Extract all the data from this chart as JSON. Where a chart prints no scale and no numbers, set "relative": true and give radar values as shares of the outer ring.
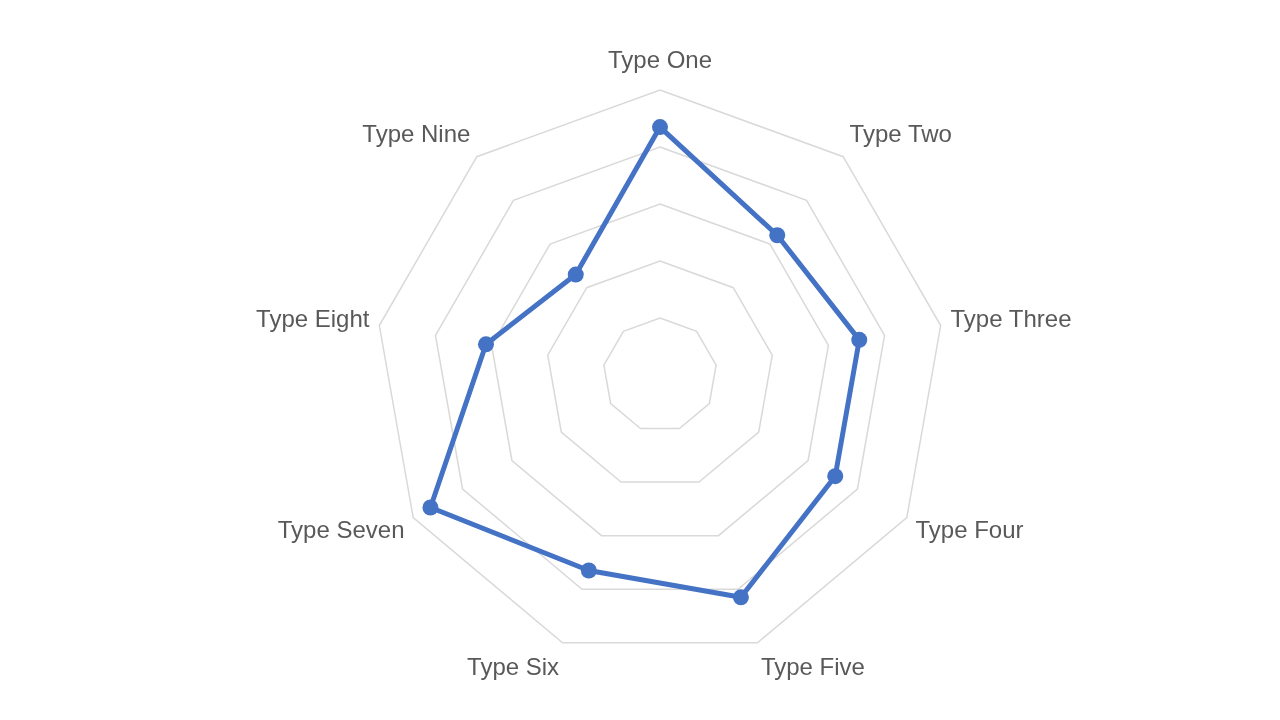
{
  "chart_data": {
    "type": "radar",
    "relative": true,
    "grid": true,
    "marker": "circle",
    "categories": [
      "Type One",
      "Type Two",
      "Type Three",
      "Type Four",
      "Type Five",
      "Type Six",
      "Type Seven",
      "Type Eight",
      "Type Nine"
    ],
    "series": [
      {
        "color": "#4472c4",
        "values": [
          0.87,
          0.64,
          0.71,
          0.71,
          0.83,
          0.73,
          0.93,
          0.62,
          0.46
        ]
      }
    ]
  }
}
